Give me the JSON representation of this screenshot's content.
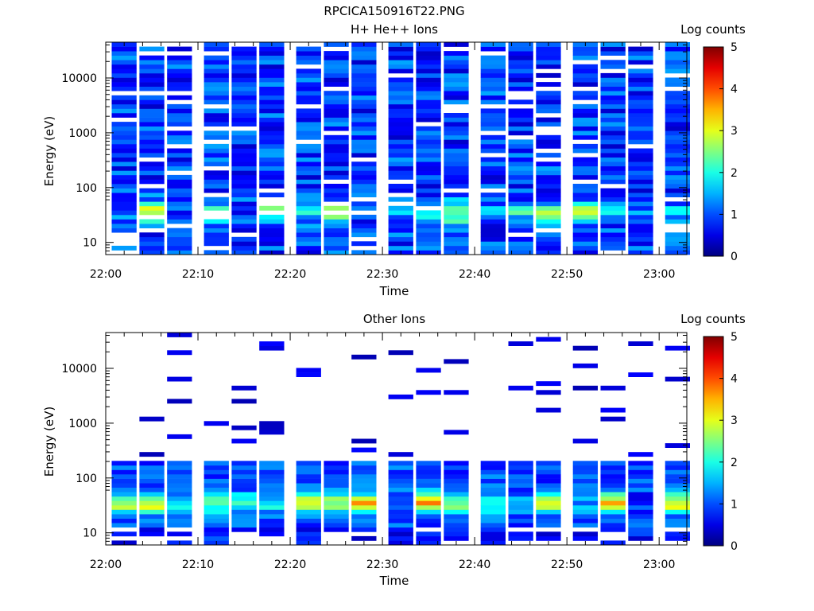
{
  "figure_title": "RPCICA150916T22.PNG",
  "chart_data": [
    {
      "type": "heatmap",
      "title": "H+ He++ Ions",
      "xlabel": "Time",
      "ylabel": "Energy (eV)",
      "x_tick_labels": [
        "22:00",
        "22:10",
        "22:20",
        "22:30",
        "22:40",
        "22:50",
        "23:00"
      ],
      "y_tick_labels": [
        "10",
        "100",
        "1000",
        "10000"
      ],
      "y_scale": "log",
      "ylim": [
        6,
        45000
      ],
      "xlim": [
        "22:00",
        "23:03"
      ],
      "colorbar": {
        "label": "Log counts",
        "min": 0,
        "max": 5,
        "tick_labels": [
          "0",
          "1",
          "2",
          "3",
          "4",
          "5"
        ],
        "colormap": "jet"
      },
      "time_bins": [
        "22:02",
        "22:05",
        "22:08",
        "22:12",
        "22:15",
        "22:18",
        "22:22",
        "22:25",
        "22:28",
        "22:32",
        "22:35",
        "22:38",
        "22:42",
        "22:45",
        "22:48",
        "22:52",
        "22:55",
        "22:58",
        "23:02"
      ],
      "energy_bin_range_eV": [
        6,
        45000
      ],
      "energy_bins": 48,
      "dominant_feature": "band of 2-3 log counts near 25-50 eV; 0.5-1.5 log counts elsewhere",
      "peak_log_counts_by_time_bin": [
        1.4,
        3.3,
        1.0,
        2.6,
        1.0,
        2.8,
        1.8,
        3.0,
        1.0,
        1.6,
        2.2,
        2.9,
        1.4,
        2.0,
        2.6,
        2.8,
        1.9,
        1.2,
        1.8
      ]
    },
    {
      "type": "heatmap",
      "title": "Other Ions",
      "xlabel": "Time",
      "ylabel": "Energy (eV)",
      "x_tick_labels": [
        "22:00",
        "22:10",
        "22:20",
        "22:30",
        "22:40",
        "22:50",
        "23:00"
      ],
      "y_tick_labels": [
        "10",
        "100",
        "1000",
        "10000"
      ],
      "y_scale": "log",
      "ylim": [
        6,
        45000
      ],
      "xlim": [
        "22:00",
        "23:03"
      ],
      "colorbar": {
        "label": "Log counts",
        "min": 0,
        "max": 5,
        "tick_labels": [
          "0",
          "1",
          "2",
          "3",
          "4",
          "5"
        ],
        "colormap": "jet"
      },
      "time_bins": [
        "22:02",
        "22:05",
        "22:08",
        "22:12",
        "22:15",
        "22:18",
        "22:22",
        "22:25",
        "22:28",
        "22:32",
        "22:35",
        "22:38",
        "22:42",
        "22:45",
        "22:48",
        "22:52",
        "22:55",
        "22:58",
        "23:02"
      ],
      "energy_bin_range_eV": [
        6,
        45000
      ],
      "energy_bins": 48,
      "dominant_feature": "band of 2-3.5 log counts near 25-60 eV; sparse weak counts above 200 eV",
      "peak_log_counts_by_time_bin": [
        3.0,
        3.3,
        2.2,
        2.6,
        2.3,
        2.0,
        3.0,
        3.0,
        3.5,
        1.5,
        3.6,
        2.9,
        2.5,
        1.5,
        3.0,
        1.6,
        3.6,
        1.0,
        3.3
      ]
    }
  ]
}
